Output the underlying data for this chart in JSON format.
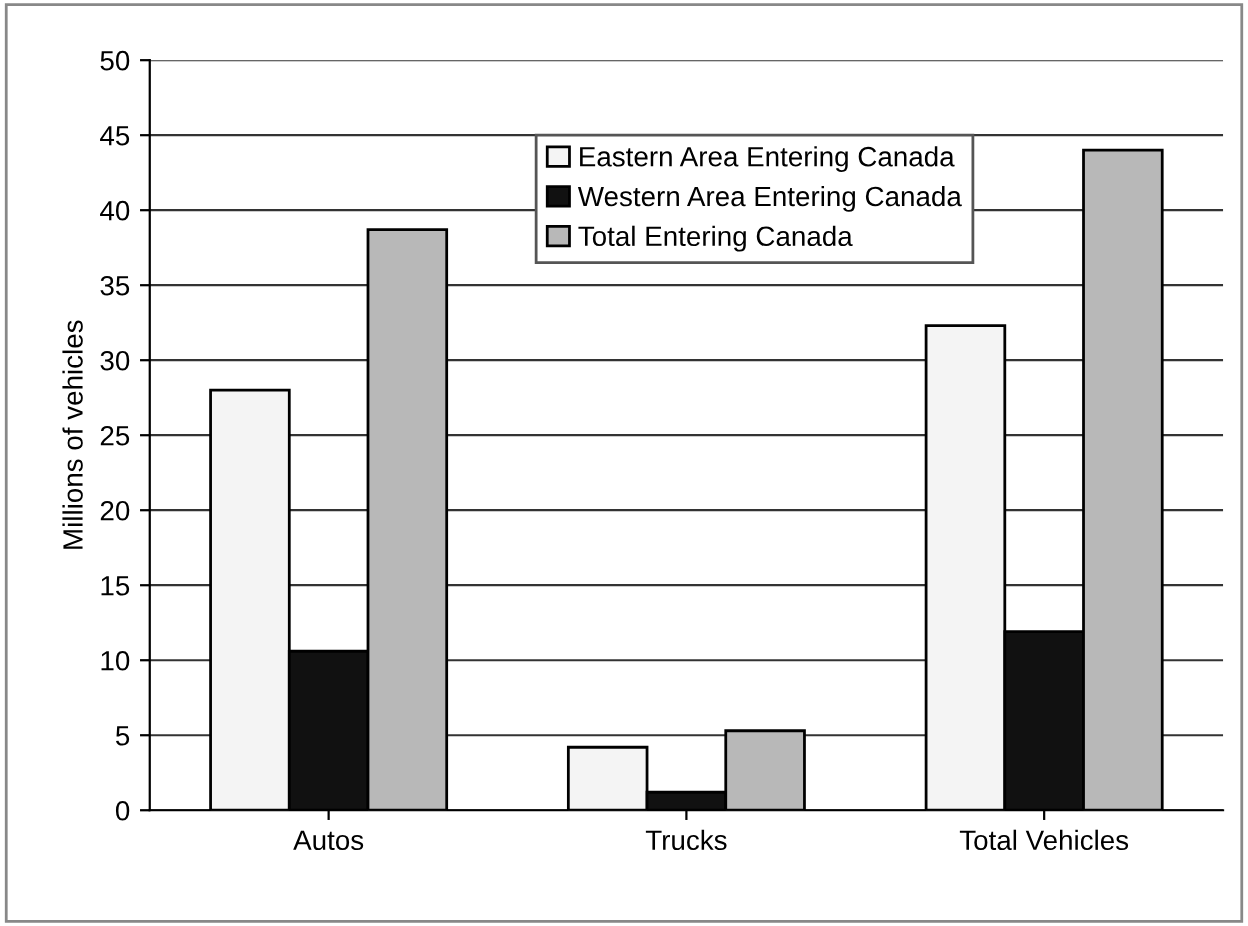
{
  "chart_data": {
    "type": "bar",
    "ylabel": "Millions of vehicles",
    "categories": [
      "Autos",
      "Trucks",
      "Total Vehicles"
    ],
    "series": [
      {
        "name": "Eastern Area Entering Canada",
        "color": "#f4f4f4",
        "values": [
          28.0,
          4.2,
          32.3
        ]
      },
      {
        "name": "Western Area Entering Canada",
        "color": "#111111",
        "values": [
          10.6,
          1.2,
          11.9
        ]
      },
      {
        "name": "Total Entering Canada",
        "color": "#b8b8b8",
        "values": [
          38.7,
          5.3,
          44.0
        ]
      }
    ],
    "ylim": [
      0,
      50
    ],
    "yticks": [
      0,
      5,
      10,
      15,
      20,
      25,
      30,
      35,
      40,
      45,
      50
    ],
    "grid": "y",
    "legend": "top right"
  }
}
